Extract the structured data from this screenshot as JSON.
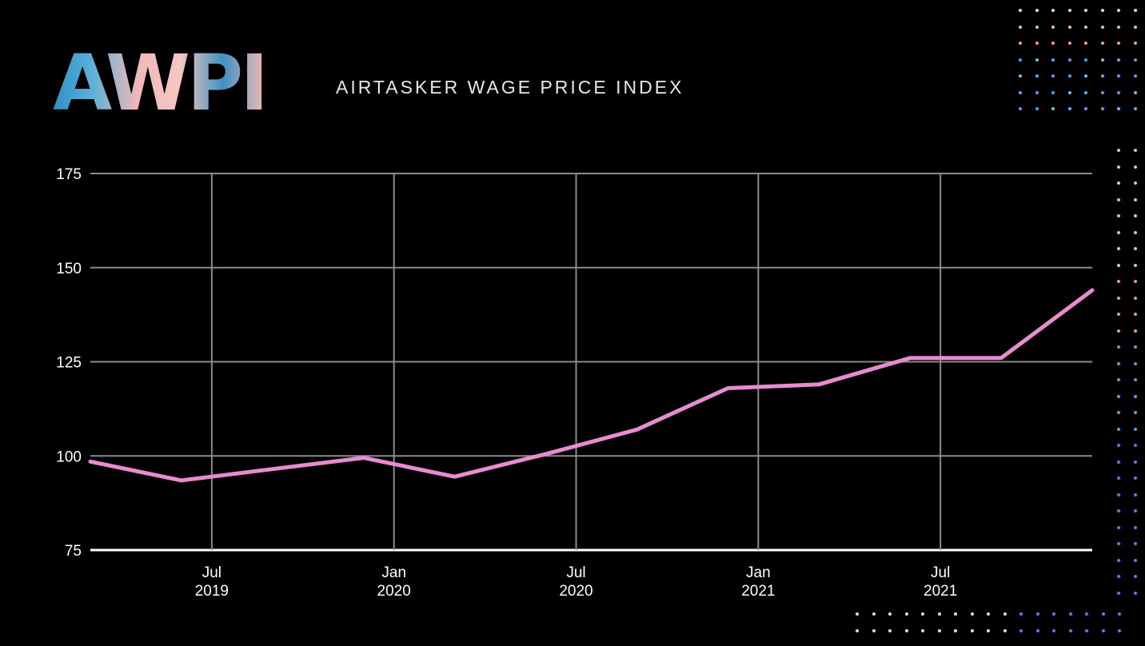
{
  "header": {
    "logo_text": "AWPI",
    "subtitle": "AIRTASKER WAGE PRICE INDEX"
  },
  "colors": {
    "background": "#000000",
    "line": "#e88cd0",
    "grid": "#8a8a8a",
    "axis": "#ffffff",
    "text": "#ffffff"
  },
  "chart_data": {
    "type": "line",
    "title": "",
    "xlabel": "",
    "ylabel": "",
    "ylim": [
      75,
      175
    ],
    "yticks": [
      75,
      100,
      125,
      150,
      175
    ],
    "xlim": [
      "2019-03",
      "2021-12"
    ],
    "xticks": [
      {
        "date": "2019-07",
        "label_top": "Jul",
        "label_bottom": "2019"
      },
      {
        "date": "2020-01",
        "label_top": "Jan",
        "label_bottom": "2020"
      },
      {
        "date": "2020-07",
        "label_top": "Jul",
        "label_bottom": "2020"
      },
      {
        "date": "2021-01",
        "label_top": "Jan",
        "label_bottom": "2021"
      },
      {
        "date": "2021-07",
        "label_top": "Jul",
        "label_bottom": "2021"
      }
    ],
    "grid": true,
    "series": [
      {
        "points": [
          {
            "x": "2019-03",
            "y": 98.5
          },
          {
            "x": "2019-06",
            "y": 93.5
          },
          {
            "x": "2019-09",
            "y": 96.5
          },
          {
            "x": "2019-12",
            "y": 99.5
          },
          {
            "x": "2020-03",
            "y": 94.5
          },
          {
            "x": "2020-06",
            "y": 100.5
          },
          {
            "x": "2020-09",
            "y": 107.0
          },
          {
            "x": "2020-12",
            "y": 118.0
          },
          {
            "x": "2021-03",
            "y": 119.0
          },
          {
            "x": "2021-06",
            "y": 126.0
          },
          {
            "x": "2021-09",
            "y": 126.0
          },
          {
            "x": "2021-12",
            "y": 144.0
          }
        ]
      }
    ]
  }
}
